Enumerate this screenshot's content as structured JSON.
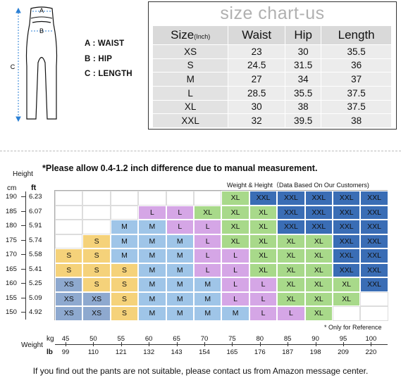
{
  "diagram": {
    "marks": {
      "a": "A",
      "b": "B",
      "c": "C"
    },
    "legend": [
      "A : WAIST",
      "B : HIP",
      "C : LENGTH"
    ]
  },
  "size_chart": {
    "title": "size chart-us",
    "headers": {
      "size": "Size",
      "size_unit": "(Inch)",
      "waist": "Waist",
      "hip": "Hip",
      "length": "Length"
    },
    "rows": [
      [
        "XS",
        "23",
        "30",
        "35.5"
      ],
      [
        "S",
        "24.5",
        "31.5",
        "36"
      ],
      [
        "M",
        "27",
        "34",
        "37"
      ],
      [
        "L",
        "28.5",
        "35.5",
        "37.5"
      ],
      [
        "XL",
        "30",
        "38",
        "37.5"
      ],
      [
        "XXL",
        "32",
        "39.5",
        "38"
      ]
    ]
  },
  "height_weight": {
    "note": "*Please allow 0.4-1.2 inch difference due to manual measurement.",
    "subtitle": "Weight & Height（Data Based On Our Customers)",
    "height_label": "Height",
    "cm_label": "cm",
    "ft_label": "ft",
    "weight_label": "Weight",
    "kg_label": "kg",
    "lb_label": "lb",
    "reference_note": "* Only for Reference",
    "heights": [
      {
        "cm": "190",
        "ft": "6.23"
      },
      {
        "cm": "185",
        "ft": "6.07"
      },
      {
        "cm": "180",
        "ft": "5.91"
      },
      {
        "cm": "175",
        "ft": "5.74"
      },
      {
        "cm": "170",
        "ft": "5.58"
      },
      {
        "cm": "165",
        "ft": "5.41"
      },
      {
        "cm": "160",
        "ft": "5.25"
      },
      {
        "cm": "155",
        "ft": "5.09"
      },
      {
        "cm": "150",
        "ft": "4.92"
      }
    ],
    "weights": [
      {
        "kg": "45",
        "lb": "99"
      },
      {
        "kg": "50",
        "lb": "110"
      },
      {
        "kg": "55",
        "lb": "121"
      },
      {
        "kg": "60",
        "lb": "132"
      },
      {
        "kg": "65",
        "lb": "143"
      },
      {
        "kg": "70",
        "lb": "154"
      },
      {
        "kg": "75",
        "lb": "165"
      },
      {
        "kg": "80",
        "lb": "176"
      },
      {
        "kg": "85",
        "lb": "187"
      },
      {
        "kg": "90",
        "lb": "198"
      },
      {
        "kg": "95",
        "lb": "209"
      },
      {
        "kg": "100",
        "lb": "220"
      }
    ],
    "size_colors": {
      "XS": "#8ea9cf",
      "S": "#f5d27a",
      "M": "#9fc5e8",
      "L": "#d5a6e6",
      "XL": "#a8d98a",
      "XXL": "#3a6db5"
    },
    "grid": [
      [
        "",
        "",
        "",
        "",
        "",
        "",
        "XL",
        "XXL",
        "XXL",
        "XXL",
        "XXL",
        "XXL"
      ],
      [
        "",
        "",
        "",
        "L",
        "L",
        "XL",
        "XL",
        "XL",
        "XXL",
        "XXL",
        "XXL",
        "XXL"
      ],
      [
        "",
        "",
        "M",
        "M",
        "L",
        "L",
        "XL",
        "XL",
        "XXL",
        "XXL",
        "XXL",
        "XXL"
      ],
      [
        "",
        "S",
        "M",
        "M",
        "M",
        "L",
        "XL",
        "XL",
        "XL",
        "XL",
        "XXL",
        "XXL"
      ],
      [
        "S",
        "S",
        "M",
        "M",
        "M",
        "L",
        "L",
        "XL",
        "XL",
        "XL",
        "XXL",
        "XXL"
      ],
      [
        "S",
        "S",
        "S",
        "M",
        "M",
        "L",
        "L",
        "XL",
        "XL",
        "XL",
        "XXL",
        "XXL"
      ],
      [
        "XS",
        "S",
        "S",
        "M",
        "M",
        "M",
        "L",
        "L",
        "XL",
        "XL",
        "XL",
        "XXL"
      ],
      [
        "XS",
        "XS",
        "S",
        "M",
        "M",
        "M",
        "L",
        "L",
        "XL",
        "XL",
        "XL",
        ""
      ],
      [
        "XS",
        "XS",
        "S",
        "M",
        "M",
        "M",
        "M",
        "L",
        "L",
        "XL",
        "",
        ""
      ]
    ]
  },
  "footer": "If you find out the pants are not suitable, please contact us from Amazon message center."
}
